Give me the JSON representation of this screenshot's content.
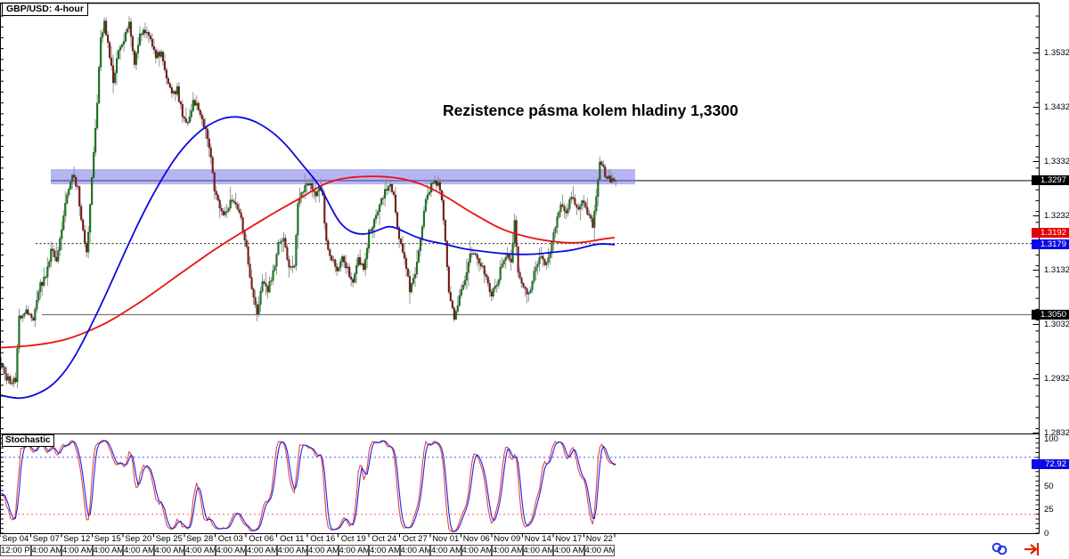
{
  "window": {
    "symbol_label": "GBP/USD: 4-hour"
  },
  "annotation": {
    "title": "Rezistence pásma kolem hladiny 1,3300"
  },
  "colors": {
    "bull": "#0e8412",
    "bear": "#8b1510",
    "wick": "#8a8a8a",
    "ma_fast_blue": "#0b0be0",
    "ma_slow_red": "#ea1212",
    "band_fill": "rgba(124,118,232,0.55)",
    "resistance_line": "#55555e",
    "support_line": "#787878",
    "dotted_line": "#222222",
    "stoch_k_red": "#e04848",
    "stoch_d_blue": "#2222dd",
    "stoch_upper_level": "#5555ee",
    "stoch_lower_level": "#ee6666",
    "badge_black": "#000000",
    "badge_red": "#e80000",
    "badge_blue": "#0a0ae8",
    "badge_text": "#ffffff",
    "frame": "#000000"
  },
  "chart_data": {
    "type": "candlestick",
    "instrument": "GBP/USD",
    "timeframe": "4-hour",
    "title": "Rezistence pásma kolem hladiny 1,3300",
    "y_axis": {
      "ticks": [
        {
          "label": "1.3532",
          "value": 1.3532
        },
        {
          "label": "1.3432",
          "value": 1.3432
        },
        {
          "label": "1.3332",
          "value": 1.3332
        },
        {
          "label": "1.3232",
          "value": 1.3232
        },
        {
          "label": "1.3132",
          "value": 1.3132
        },
        {
          "label": "1.3032",
          "value": 1.3032
        },
        {
          "label": "1.2932",
          "value": 1.2932
        },
        {
          "label": "1.2832",
          "value": 1.2832
        }
      ],
      "minor_step": 0.002,
      "visible_range": [
        1.2832,
        1.3624
      ]
    },
    "x_axis": {
      "labels": [
        {
          "date": "Sep 04",
          "time": "12:00 PM"
        },
        {
          "date": "Sep 07",
          "time": "4:00 AM"
        },
        {
          "date": "Sep 12",
          "time": "4:00 AM"
        },
        {
          "date": "Sep 15",
          "time": "4:00 AM"
        },
        {
          "date": "Sep 20",
          "time": "4:00 AM"
        },
        {
          "date": "Sep 25",
          "time": "4:00 AM"
        },
        {
          "date": "Sep 28",
          "time": "4:00 AM"
        },
        {
          "date": "Oct 03",
          "time": "4:00 AM"
        },
        {
          "date": "Oct 06",
          "time": "4:00 AM"
        },
        {
          "date": "Oct 11",
          "time": "4:00 AM"
        },
        {
          "date": "Oct 16",
          "time": "4:00 AM"
        },
        {
          "date": "Oct 19",
          "time": "4:00 AM"
        },
        {
          "date": "Oct 24",
          "time": "4:00 AM"
        },
        {
          "date": "Oct 27",
          "time": "4:00 AM"
        },
        {
          "date": "Nov 01",
          "time": "4:00 AM"
        },
        {
          "date": "Nov 06",
          "time": "4:00 AM"
        },
        {
          "date": "Nov 09",
          "time": "4:00 AM"
        },
        {
          "date": "Nov 14",
          "time": "4:00 AM"
        },
        {
          "date": "Nov 17",
          "time": "4:00 AM"
        },
        {
          "date": "Nov 22",
          "time": "4:00 AM"
        }
      ]
    },
    "last_price": 1.3297,
    "levels": {
      "resistance": 1.3297,
      "support": 1.305,
      "dotted": 1.3181,
      "band_top": 1.3318,
      "band_bottom": 1.329
    },
    "badges": {
      "last": {
        "label": "1.3297",
        "value": 1.3297
      },
      "ma_red": {
        "label": "1.3192",
        "value": 1.3192
      },
      "ma_blue": {
        "label": "1.3179",
        "value": 1.3179
      },
      "support": {
        "label": "1.3050",
        "value": 1.305
      },
      "stoch": {
        "label": "72.92",
        "value": 72.92
      }
    },
    "candles": {
      "count": 347,
      "close_anchors": [
        [
          0,
          1.296
        ],
        [
          3,
          1.2935
        ],
        [
          6,
          1.2925
        ],
        [
          8,
          1.293
        ],
        [
          10,
          1.3045
        ],
        [
          14,
          1.306
        ],
        [
          18,
          1.304
        ],
        [
          22,
          1.3105
        ],
        [
          25,
          1.312
        ],
        [
          28,
          1.317
        ],
        [
          31,
          1.3155
        ],
        [
          34,
          1.321
        ],
        [
          37,
          1.327
        ],
        [
          40,
          1.3305
        ],
        [
          43,
          1.3285
        ],
        [
          45,
          1.322
        ],
        [
          48,
          1.3165
        ],
        [
          50,
          1.325
        ],
        [
          52,
          1.335
        ],
        [
          54,
          1.3445
        ],
        [
          56,
          1.3555
        ],
        [
          58,
          1.3595
        ],
        [
          61,
          1.3525
        ],
        [
          63,
          1.348
        ],
        [
          66,
          1.3535
        ],
        [
          69,
          1.3555
        ],
        [
          72,
          1.359
        ],
        [
          75,
          1.3515
        ],
        [
          78,
          1.3565
        ],
        [
          81,
          1.3575
        ],
        [
          84,
          1.3555
        ],
        [
          87,
          1.3525
        ],
        [
          90,
          1.3535
        ],
        [
          93,
          1.3485
        ],
        [
          96,
          1.3455
        ],
        [
          99,
          1.3465
        ],
        [
          102,
          1.3415
        ],
        [
          105,
          1.34
        ],
        [
          108,
          1.3445
        ],
        [
          110,
          1.3435
        ],
        [
          113,
          1.3405
        ],
        [
          116,
          1.338
        ],
        [
          118,
          1.3335
        ],
        [
          120,
          1.328
        ],
        [
          123,
          1.3245
        ],
        [
          126,
          1.3235
        ],
        [
          129,
          1.326
        ],
        [
          132,
          1.3255
        ],
        [
          135,
          1.3225
        ],
        [
          138,
          1.317
        ],
        [
          141,
          1.3095
        ],
        [
          144,
          1.3045
        ],
        [
          147,
          1.3115
        ],
        [
          150,
          1.3095
        ],
        [
          153,
          1.3125
        ],
        [
          156,
          1.3185
        ],
        [
          159,
          1.3195
        ],
        [
          162,
          1.3135
        ],
        [
          165,
          1.3145
        ],
        [
          167,
          1.325
        ],
        [
          170,
          1.328
        ],
        [
          173,
          1.3295
        ],
        [
          176,
          1.327
        ],
        [
          179,
          1.3285
        ],
        [
          181,
          1.3265
        ],
        [
          183,
          1.318
        ],
        [
          186,
          1.3155
        ],
        [
          189,
          1.3125
        ],
        [
          192,
          1.3155
        ],
        [
          195,
          1.3135
        ],
        [
          198,
          1.3105
        ],
        [
          201,
          1.3155
        ],
        [
          204,
          1.3135
        ],
        [
          207,
          1.32
        ],
        [
          210,
          1.3225
        ],
        [
          213,
          1.3255
        ],
        [
          216,
          1.3275
        ],
        [
          219,
          1.3285
        ],
        [
          221,
          1.327
        ],
        [
          224,
          1.3185
        ],
        [
          227,
          1.3155
        ],
        [
          230,
          1.3095
        ],
        [
          233,
          1.3125
        ],
        [
          236,
          1.3185
        ],
        [
          239,
          1.326
        ],
        [
          242,
          1.329
        ],
        [
          244,
          1.3295
        ],
        [
          247,
          1.3285
        ],
        [
          249,
          1.3225
        ],
        [
          252,
          1.3095
        ],
        [
          255,
          1.3045
        ],
        [
          258,
          1.3085
        ],
        [
          261,
          1.3115
        ],
        [
          264,
          1.3165
        ],
        [
          267,
          1.316
        ],
        [
          270,
          1.3145
        ],
        [
          273,
          1.3115
        ],
        [
          276,
          1.3085
        ],
        [
          279,
          1.3105
        ],
        [
          282,
          1.3145
        ],
        [
          285,
          1.3155
        ],
        [
          287,
          1.3145
        ],
        [
          289,
          1.322
        ],
        [
          291,
          1.3125
        ],
        [
          294,
          1.3105
        ],
        [
          297,
          1.3085
        ],
        [
          300,
          1.3125
        ],
        [
          303,
          1.3155
        ],
        [
          306,
          1.3145
        ],
        [
          309,
          1.3165
        ],
        [
          312,
          1.321
        ],
        [
          315,
          1.3255
        ],
        [
          318,
          1.324
        ],
        [
          321,
          1.3265
        ],
        [
          324,
          1.3245
        ],
        [
          327,
          1.326
        ],
        [
          330,
          1.3235
        ],
        [
          333,
          1.3215
        ],
        [
          335,
          1.327
        ],
        [
          337,
          1.333
        ],
        [
          340,
          1.331
        ],
        [
          343,
          1.3295
        ],
        [
          346,
          1.3297
        ]
      ]
    },
    "ma_blue_anchors": [
      [
        0,
        1.2902
      ],
      [
        12,
        1.2897
      ],
      [
        25,
        1.2896
      ],
      [
        40,
        1.2902
      ],
      [
        60,
        1.292
      ],
      [
        80,
        1.296
      ],
      [
        100,
        1.3022
      ],
      [
        120,
        1.3091
      ],
      [
        140,
        1.3165
      ],
      [
        160,
        1.3235
      ],
      [
        180,
        1.3296
      ],
      [
        200,
        1.3347
      ],
      [
        220,
        1.3383
      ],
      [
        240,
        1.3406
      ],
      [
        260,
        1.3416
      ],
      [
        280,
        1.3411
      ],
      [
        300,
        1.3394
      ],
      [
        320,
        1.3366
      ],
      [
        340,
        1.3325
      ],
      [
        350,
        1.3306
      ],
      [
        360,
        1.3284
      ],
      [
        370,
        1.3252
      ],
      [
        380,
        1.3222
      ],
      [
        390,
        1.3206
      ],
      [
        400,
        1.3199
      ],
      [
        412,
        1.3198
      ],
      [
        425,
        1.3206
      ],
      [
        437,
        1.3214
      ],
      [
        450,
        1.3206
      ],
      [
        465,
        1.3194
      ],
      [
        480,
        1.3186
      ],
      [
        500,
        1.318
      ],
      [
        520,
        1.3171
      ],
      [
        540,
        1.3167
      ],
      [
        560,
        1.3163
      ],
      [
        580,
        1.3161
      ],
      [
        600,
        1.3161
      ],
      [
        620,
        1.3165
      ],
      [
        640,
        1.3168
      ],
      [
        655,
        1.3174
      ],
      [
        672,
        1.3181
      ],
      [
        690,
        1.3179
      ]
    ],
    "ma_red_anchors": [
      [
        0,
        1.2989
      ],
      [
        20,
        1.2991
      ],
      [
        40,
        1.2994
      ],
      [
        60,
        1.2999
      ],
      [
        80,
        1.3007
      ],
      [
        100,
        1.302
      ],
      [
        120,
        1.3035
      ],
      [
        140,
        1.3055
      ],
      [
        160,
        1.3076
      ],
      [
        180,
        1.3099
      ],
      [
        200,
        1.3123
      ],
      [
        220,
        1.3146
      ],
      [
        240,
        1.3169
      ],
      [
        260,
        1.319
      ],
      [
        280,
        1.321
      ],
      [
        300,
        1.323
      ],
      [
        320,
        1.3249
      ],
      [
        340,
        1.3267
      ],
      [
        355,
        1.3283
      ],
      [
        370,
        1.3295
      ],
      [
        385,
        1.3301
      ],
      [
        400,
        1.3304
      ],
      [
        420,
        1.3305
      ],
      [
        435,
        1.3304
      ],
      [
        450,
        1.3301
      ],
      [
        465,
        1.3295
      ],
      [
        480,
        1.3286
      ],
      [
        495,
        1.3273
      ],
      [
        510,
        1.3258
      ],
      [
        525,
        1.3242
      ],
      [
        540,
        1.3228
      ],
      [
        555,
        1.3214
      ],
      [
        570,
        1.3203
      ],
      [
        585,
        1.3196
      ],
      [
        600,
        1.319
      ],
      [
        615,
        1.3186
      ],
      [
        630,
        1.3183
      ],
      [
        645,
        1.3182
      ],
      [
        660,
        1.3184
      ],
      [
        675,
        1.3189
      ],
      [
        690,
        1.3192
      ]
    ],
    "stochastic": {
      "label": "Stochastic",
      "period": 14,
      "upper_level": 80,
      "lower_level": 20,
      "last_value": 72.92,
      "axis_ticks": [
        {
          "label": "100",
          "value": 100
        },
        {
          "label": "50",
          "value": 50
        },
        {
          "label": "25",
          "value": 25
        },
        {
          "label": "0",
          "value": 0
        }
      ]
    }
  },
  "icons": {
    "link": "link-icon",
    "scroll_to_end": "scroll-to-end-icon"
  }
}
